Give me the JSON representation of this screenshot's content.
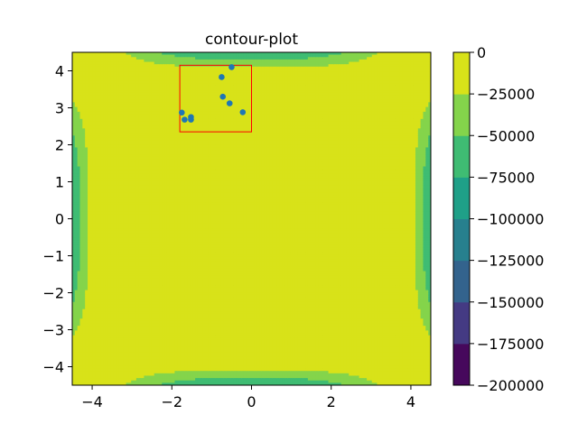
{
  "chart_data": {
    "type": "contour",
    "title": "contour-plot",
    "xlabel": "",
    "ylabel": "",
    "xlim": [
      -4.5,
      4.5
    ],
    "ylim": [
      -4.5,
      4.5
    ],
    "x_ticks": [
      -4,
      -2,
      0,
      2,
      4
    ],
    "y_ticks": [
      -4,
      -3,
      -2,
      -1,
      0,
      1,
      2,
      3,
      4
    ],
    "x_tick_labels": [
      "−4",
      "−2",
      "0",
      "2",
      "4"
    ],
    "y_tick_labels": [
      "−4",
      "−3",
      "−2",
      "−1",
      "0",
      "1",
      "2",
      "3",
      "4"
    ],
    "grid": false,
    "colorbar": {
      "levels": [
        -200000,
        -175000,
        -150000,
        -125000,
        -100000,
        -75000,
        -50000,
        -25000,
        0
      ],
      "tick_labels": [
        "−200000",
        "−175000",
        "−150000",
        "−125000",
        "−100000",
        "−75000",
        "−50000",
        "−25000",
        "0"
      ],
      "colors": [
        "#46085c",
        "#443a83",
        "#33638d",
        "#27808e",
        "#1fa088",
        "#3fbc73",
        "#84d44b",
        "#d8e219"
      ]
    },
    "highlight_box": {
      "x_range": [
        -1.8,
        0.0
      ],
      "y_range": [
        2.35,
        4.15
      ],
      "color": "#ff0000"
    },
    "points_color": "#1f77b4",
    "points": [
      {
        "x": -0.5,
        "y": 4.1
      },
      {
        "x": -0.75,
        "y": 3.83
      },
      {
        "x": -0.72,
        "y": 3.3
      },
      {
        "x": -0.55,
        "y": 3.12
      },
      {
        "x": -1.75,
        "y": 2.87
      },
      {
        "x": -0.22,
        "y": 2.88
      },
      {
        "x": -1.52,
        "y": 2.75
      },
      {
        "x": -1.68,
        "y": 2.68
      },
      {
        "x": -1.52,
        "y": 2.68
      }
    ]
  }
}
